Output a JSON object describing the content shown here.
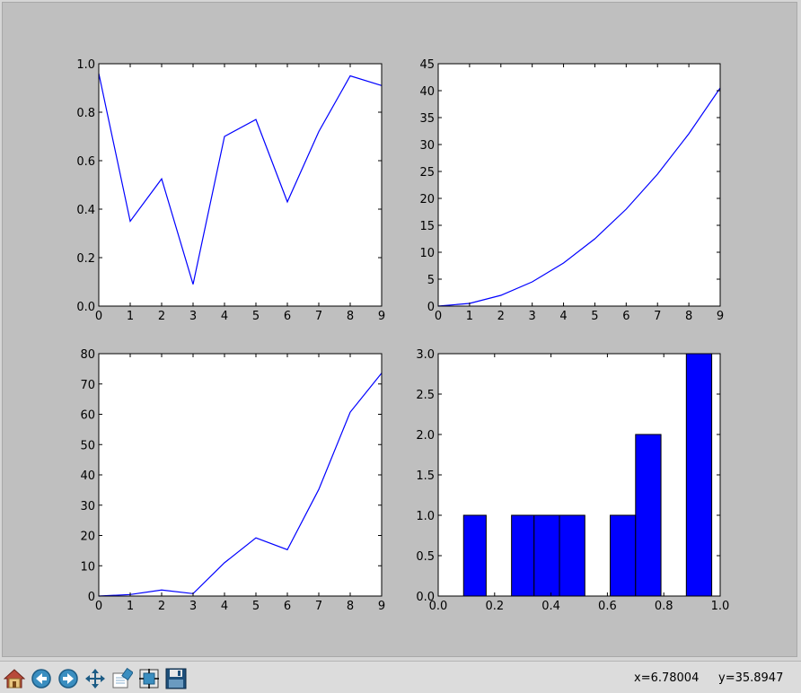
{
  "window": {
    "figure_background": "#bfbfbf",
    "axes_background": "#ffffff",
    "line_color": "#0000ff",
    "bar_color": "#0000ff"
  },
  "toolbar": {
    "buttons": [
      {
        "name": "home-button",
        "icon": "home-icon"
      },
      {
        "name": "back-button",
        "icon": "arrow-left-icon"
      },
      {
        "name": "forward-button",
        "icon": "arrow-right-icon"
      },
      {
        "name": "pan-button",
        "icon": "move-icon"
      },
      {
        "name": "zoom-button",
        "icon": "zoom-rect-icon"
      },
      {
        "name": "subplots-button",
        "icon": "configure-subplots-icon"
      },
      {
        "name": "save-button",
        "icon": "floppy-disk-icon"
      }
    ],
    "coord_x": "x=6.78004",
    "coord_y": "y=35.8947"
  },
  "chart_data": [
    {
      "type": "line",
      "x": [
        0,
        1,
        2,
        3,
        4,
        5,
        6,
        7,
        8,
        9
      ],
      "series": [
        {
          "values": [
            0.96,
            0.35,
            0.525,
            0.09,
            0.7,
            0.77,
            0.43,
            0.72,
            0.95,
            0.91
          ]
        }
      ],
      "xlim": [
        0,
        9
      ],
      "ylim": [
        0,
        1.0
      ],
      "xticks": [
        "0",
        "1",
        "2",
        "3",
        "4",
        "5",
        "6",
        "7",
        "8",
        "9"
      ],
      "yticks": [
        "0.0",
        "0.2",
        "0.4",
        "0.6",
        "0.8",
        "1.0"
      ],
      "grid": false
    },
    {
      "type": "line",
      "x": [
        0,
        1,
        2,
        3,
        4,
        5,
        6,
        7,
        8,
        9
      ],
      "series": [
        {
          "values": [
            0,
            0.5,
            2,
            4.5,
            8,
            12.5,
            18,
            24.5,
            32,
            40.5
          ]
        }
      ],
      "xlim": [
        0,
        9
      ],
      "ylim": [
        0,
        45
      ],
      "xticks": [
        "0",
        "1",
        "2",
        "3",
        "4",
        "5",
        "6",
        "7",
        "8",
        "9"
      ],
      "yticks": [
        "0",
        "5",
        "10",
        "15",
        "20",
        "25",
        "30",
        "35",
        "40",
        "45"
      ],
      "grid": false
    },
    {
      "type": "line",
      "x": [
        0,
        1,
        2,
        3,
        4,
        5,
        6,
        7,
        8,
        9
      ],
      "series": [
        {
          "values": [
            0,
            0.5,
            2,
            0.8,
            11,
            19.2,
            15.3,
            35.2,
            60.7,
            73.6
          ]
        }
      ],
      "xlim": [
        0,
        9
      ],
      "ylim": [
        0,
        80
      ],
      "xticks": [
        "0",
        "1",
        "2",
        "3",
        "4",
        "5",
        "6",
        "7",
        "8",
        "9"
      ],
      "yticks": [
        "0",
        "10",
        "20",
        "30",
        "40",
        "50",
        "60",
        "70",
        "80"
      ],
      "grid": false
    },
    {
      "type": "bar",
      "bins": [
        {
          "x0": 0.09,
          "x1": 0.17,
          "count": 1
        },
        {
          "x0": 0.17,
          "x1": 0.26,
          "count": 0
        },
        {
          "x0": 0.26,
          "x1": 0.34,
          "count": 1
        },
        {
          "x0": 0.34,
          "x1": 0.43,
          "count": 1
        },
        {
          "x0": 0.43,
          "x1": 0.52,
          "count": 1
        },
        {
          "x0": 0.52,
          "x1": 0.61,
          "count": 0
        },
        {
          "x0": 0.61,
          "x1": 0.7,
          "count": 1
        },
        {
          "x0": 0.7,
          "x1": 0.79,
          "count": 2
        },
        {
          "x0": 0.79,
          "x1": 0.88,
          "count": 0
        },
        {
          "x0": 0.88,
          "x1": 0.97,
          "count": 3
        }
      ],
      "xlim": [
        0,
        1.0
      ],
      "ylim": [
        0,
        3.0
      ],
      "xticks": [
        "0.0",
        "0.2",
        "0.4",
        "0.6",
        "0.8",
        "1.0"
      ],
      "yticks": [
        "0.0",
        "0.5",
        "1.0",
        "1.5",
        "2.0",
        "2.5",
        "3.0"
      ],
      "grid": false
    }
  ]
}
